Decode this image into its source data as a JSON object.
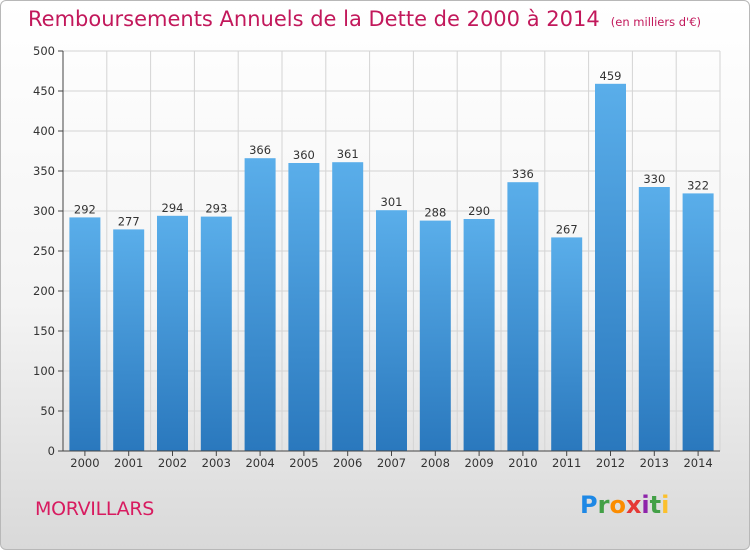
{
  "chart_data": {
    "type": "bar",
    "title": "Remboursements Annuels de la Dette de 2000 à 2014",
    "subtitle": "(en milliers d'€)",
    "categories": [
      "2000",
      "2001",
      "2002",
      "2003",
      "2004",
      "2005",
      "2006",
      "2007",
      "2008",
      "2009",
      "2010",
      "2011",
      "2012",
      "2013",
      "2014"
    ],
    "values": [
      292,
      277,
      294,
      293,
      366,
      360,
      361,
      301,
      288,
      290,
      336,
      267,
      459,
      330,
      322
    ],
    "ylim": [
      0,
      500
    ],
    "yticks": [
      0,
      50,
      100,
      150,
      200,
      250,
      300,
      350,
      400,
      450,
      500
    ],
    "grid": true,
    "bar_color": "#4d9fe0",
    "data_labels": true
  },
  "footer": {
    "commune": "MORVILLARS",
    "logo_text": "Proxiti"
  },
  "colors": {
    "title": "#c2185b",
    "commune": "#d81b60"
  }
}
